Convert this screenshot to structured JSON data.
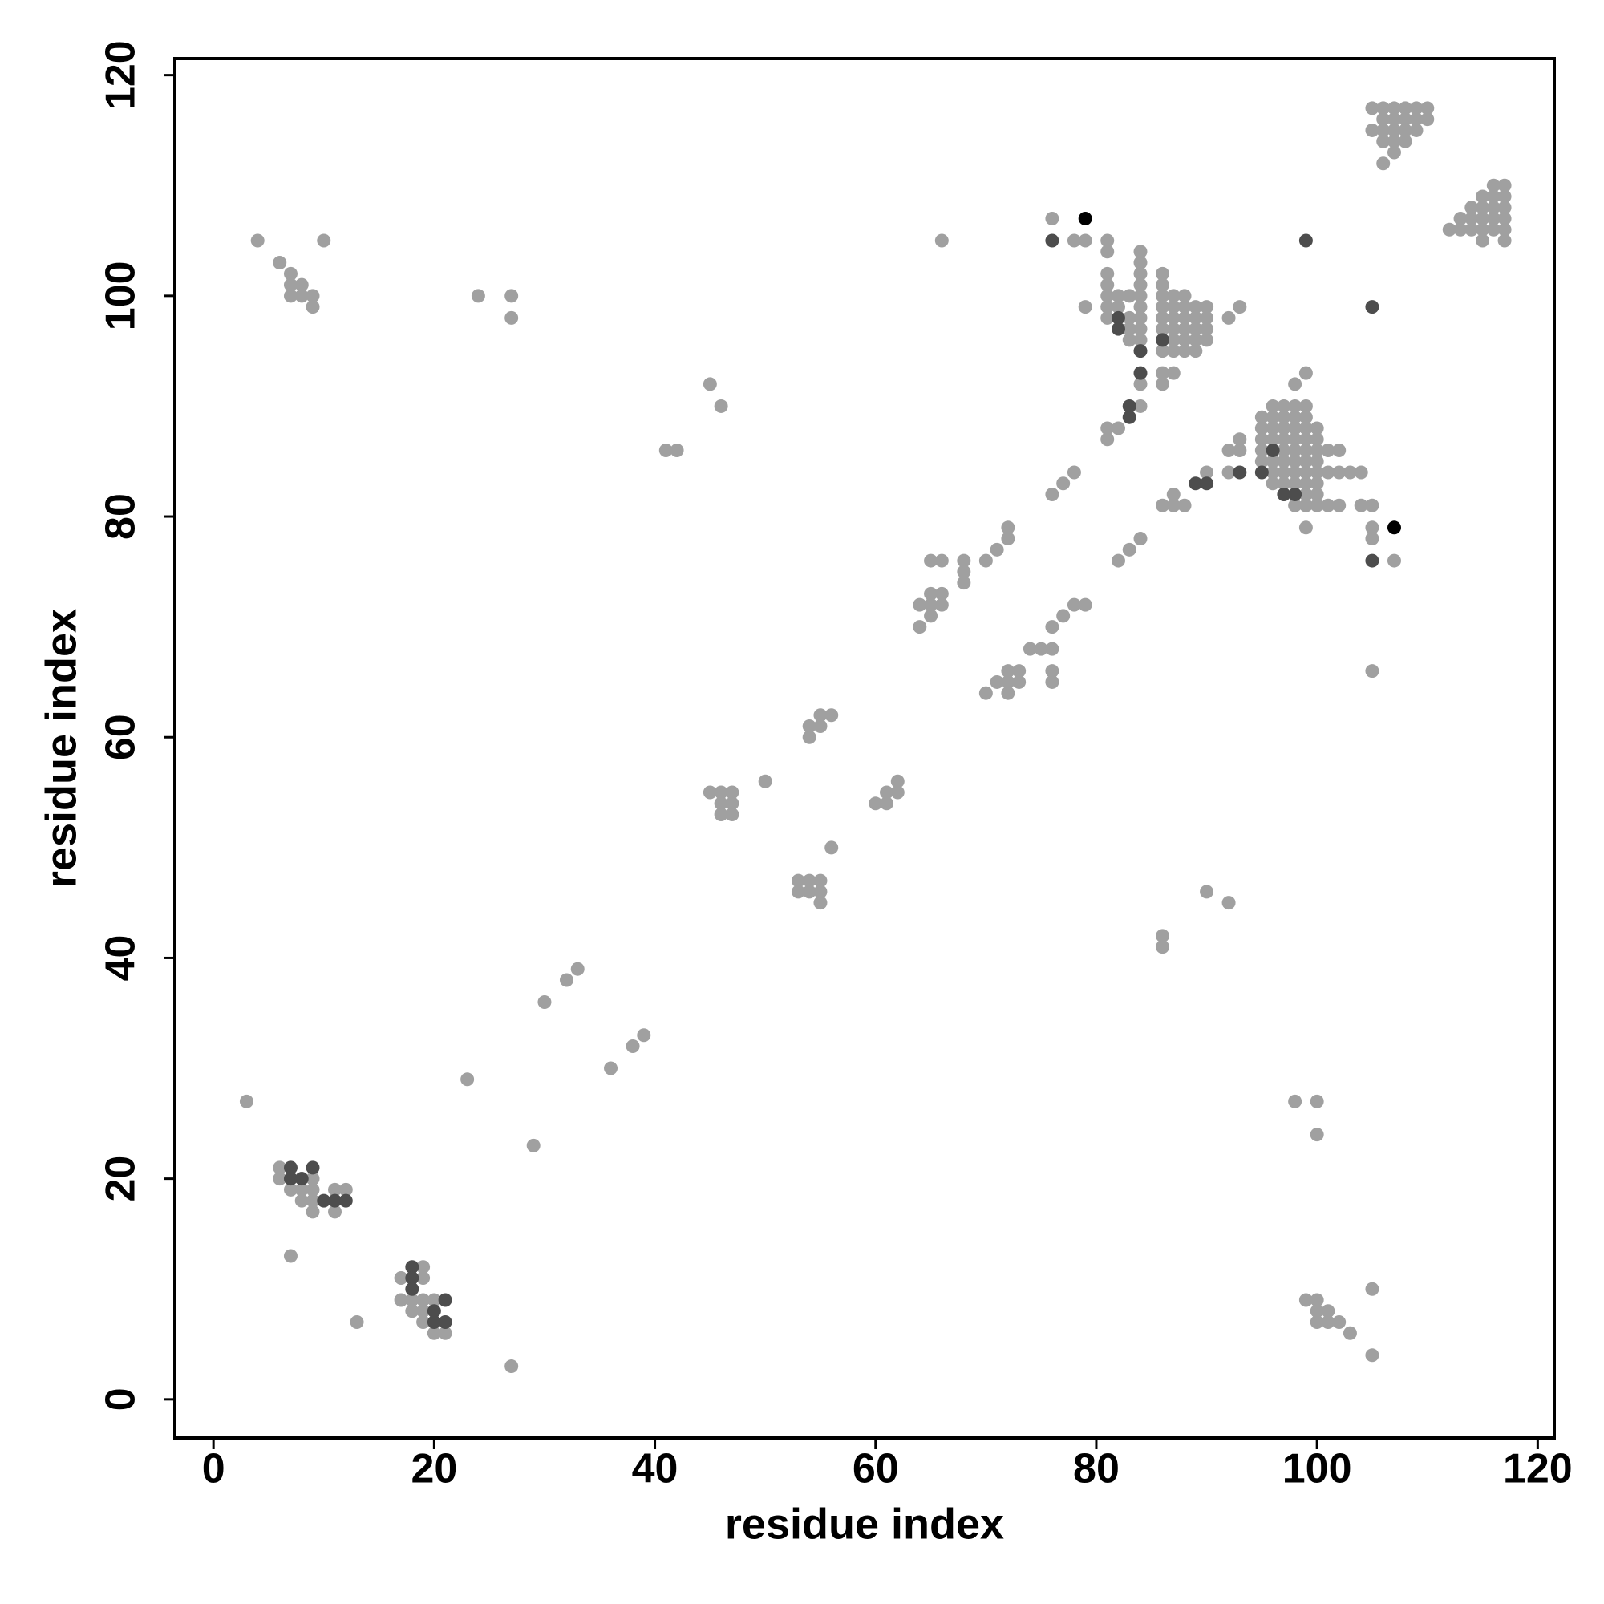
{
  "chart_data": {
    "type": "scatter",
    "x_label": "residue index",
    "y_label": "residue index",
    "xlim": [
      -3.5,
      121.5
    ],
    "ylim": [
      -3.5,
      121.5
    ],
    "xticks": [
      0,
      20,
      40,
      60,
      80,
      100,
      120
    ],
    "yticks": [
      0,
      20,
      40,
      60,
      80,
      100,
      120
    ],
    "series": [
      {
        "color": "#a0a0a0",
        "x": [
          3,
          7,
          13,
          27,
          23,
          29,
          30,
          32,
          33,
          36,
          38,
          39,
          6,
          6,
          7,
          8,
          8,
          8,
          9,
          9,
          9,
          9,
          11,
          11,
          12,
          17,
          17,
          18,
          18,
          19,
          19,
          19,
          19,
          19,
          20,
          20,
          21,
          4,
          6,
          7,
          7,
          7,
          8,
          8,
          9,
          9,
          10,
          24,
          27,
          27,
          41,
          42,
          45,
          46,
          45,
          46,
          46,
          46,
          47,
          47,
          47,
          50,
          53,
          53,
          54,
          54,
          55,
          55,
          55,
          56,
          54,
          54,
          55,
          55,
          56,
          60,
          61,
          61,
          62,
          62,
          64,
          64,
          65,
          65,
          65,
          65,
          66,
          66,
          66,
          66,
          68,
          68,
          68,
          70,
          71,
          72,
          72,
          70,
          71,
          72,
          72,
          72,
          73,
          73,
          74,
          75,
          76,
          76,
          76,
          76,
          77,
          78,
          79,
          76,
          77,
          78,
          81,
          81,
          82,
          82,
          83,
          84,
          76,
          78,
          79,
          79,
          81,
          81,
          81,
          81,
          81,
          81,
          81,
          82,
          82,
          83,
          83,
          83,
          83,
          84,
          84,
          84,
          84,
          84,
          84,
          84,
          84,
          84,
          84,
          84,
          86,
          86,
          86,
          86,
          86,
          86,
          86,
          86,
          86,
          87,
          87,
          87,
          87,
          87,
          87,
          87,
          88,
          88,
          88,
          88,
          88,
          88,
          89,
          89,
          89,
          89,
          89,
          90,
          90,
          90,
          90,
          92,
          93,
          86,
          87,
          87,
          88,
          90,
          92,
          92,
          93,
          93,
          95,
          95,
          95,
          95,
          95,
          96,
          96,
          96,
          96,
          96,
          96,
          96,
          97,
          97,
          97,
          97,
          97,
          97,
          97,
          97,
          98,
          98,
          98,
          98,
          98,
          98,
          98,
          98,
          98,
          98,
          99,
          99,
          99,
          99,
          99,
          99,
          99,
          99,
          99,
          99,
          99,
          99,
          100,
          100,
          100,
          100,
          100,
          100,
          100,
          100,
          101,
          101,
          101,
          102,
          102,
          102,
          103,
          104,
          104,
          105,
          105,
          105,
          105,
          107,
          90,
          92,
          86,
          86,
          98,
          100,
          100,
          99,
          100,
          100,
          100,
          101,
          101,
          102,
          103,
          105,
          105,
          105,
          105,
          106,
          106,
          106,
          106,
          106,
          107,
          107,
          107,
          107,
          107,
          108,
          108,
          108,
          108,
          109,
          109,
          109,
          110,
          110,
          112,
          113,
          113,
          114,
          114,
          114,
          115,
          115,
          115,
          115,
          115,
          116,
          116,
          116,
          116,
          116,
          117,
          117,
          117,
          117,
          117,
          117
        ],
        "values": [
          27,
          13,
          7,
          3,
          29,
          23,
          36,
          38,
          39,
          30,
          32,
          33,
          21,
          20,
          19,
          18,
          19,
          20,
          20,
          19,
          18,
          17,
          19,
          17,
          19,
          11,
          9,
          9,
          8,
          12,
          11,
          9,
          8,
          7,
          9,
          6,
          6,
          105,
          103,
          102,
          101,
          100,
          101,
          100,
          100,
          99,
          105,
          100,
          100,
          98,
          86,
          86,
          92,
          90,
          55,
          55,
          54,
          53,
          55,
          54,
          53,
          56,
          47,
          46,
          47,
          46,
          47,
          46,
          45,
          50,
          61,
          60,
          62,
          61,
          62,
          54,
          55,
          54,
          56,
          55,
          72,
          70,
          76,
          73,
          72,
          71,
          76,
          73,
          72,
          105,
          76,
          75,
          74,
          76,
          77,
          79,
          78,
          64,
          65,
          66,
          65,
          64,
          66,
          65,
          68,
          68,
          68,
          66,
          65,
          70,
          71,
          72,
          72,
          82,
          83,
          84,
          87,
          88,
          88,
          76,
          77,
          78,
          107,
          105,
          105,
          99,
          105,
          104,
          102,
          101,
          100,
          99,
          98,
          100,
          99,
          100,
          98,
          97,
          96,
          104,
          103,
          102,
          101,
          100,
          99,
          98,
          97,
          96,
          92,
          90,
          102,
          101,
          100,
          99,
          98,
          97,
          95,
          93,
          92,
          100,
          99,
          98,
          97,
          96,
          95,
          93,
          100,
          99,
          98,
          97,
          96,
          95,
          99,
          98,
          97,
          96,
          95,
          99,
          98,
          97,
          96,
          98,
          99,
          81,
          81,
          82,
          81,
          84,
          84,
          86,
          86,
          87,
          89,
          88,
          87,
          86,
          85,
          90,
          89,
          88,
          87,
          85,
          84,
          83,
          90,
          89,
          88,
          87,
          86,
          85,
          84,
          83,
          92,
          90,
          89,
          88,
          87,
          86,
          85,
          84,
          83,
          81,
          93,
          90,
          89,
          88,
          87,
          86,
          85,
          84,
          83,
          82,
          81,
          79,
          88,
          87,
          86,
          85,
          84,
          83,
          82,
          81,
          86,
          84,
          81,
          86,
          84,
          81,
          84,
          84,
          81,
          81,
          79,
          78,
          66,
          76,
          46,
          45,
          42,
          41,
          27,
          27,
          24,
          9,
          9,
          8,
          7,
          8,
          7,
          7,
          6,
          10,
          4,
          117,
          115,
          117,
          116,
          115,
          114,
          112,
          117,
          116,
          115,
          114,
          113,
          117,
          116,
          115,
          114,
          117,
          116,
          115,
          117,
          116,
          106,
          107,
          106,
          108,
          107,
          106,
          109,
          108,
          107,
          106,
          105,
          110,
          109,
          108,
          107,
          106,
          110,
          109,
          108,
          107,
          106,
          105
        ]
      },
      {
        "color": "#4d4d4d",
        "x": [
          7,
          7,
          8,
          9,
          10,
          11,
          12,
          18,
          18,
          18,
          20,
          20,
          21,
          21,
          82,
          82,
          83,
          83,
          84,
          84,
          86,
          89,
          90,
          93,
          95,
          96,
          97,
          98,
          76,
          99,
          105,
          105
        ],
        "values": [
          21,
          20,
          20,
          21,
          18,
          18,
          18,
          12,
          11,
          10,
          8,
          7,
          9,
          7,
          98,
          97,
          90,
          89,
          95,
          93,
          96,
          83,
          83,
          84,
          84,
          86,
          82,
          82,
          105,
          105,
          99,
          76
        ]
      },
      {
        "color": "#000000",
        "x": [
          79,
          107
        ],
        "values": [
          107,
          79
        ]
      }
    ]
  }
}
